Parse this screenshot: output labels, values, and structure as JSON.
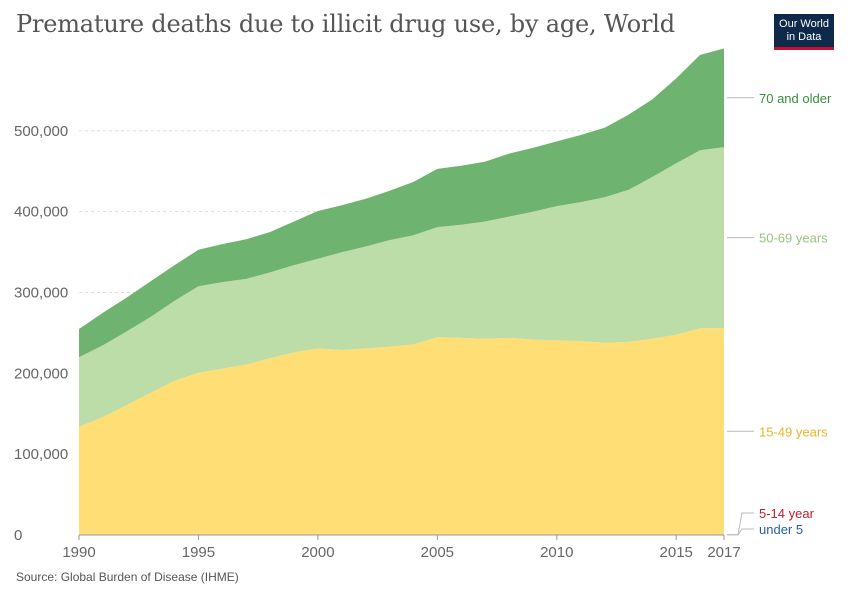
{
  "header": {
    "title": "Premature deaths due to illicit drug use, by age, World",
    "logo_line1": "Our World",
    "logo_line2": "in Data"
  },
  "footer": {
    "source": "Source: Global Burden of Disease (IHME)"
  },
  "colors": {
    "logo_bg": "#0d2a4a",
    "logo_accent": "#c8102e"
  },
  "chart_data": {
    "type": "area",
    "stacked": true,
    "title": "Premature deaths due to illicit drug use, by age, World",
    "x": [
      1990,
      1991,
      1992,
      1993,
      1994,
      1995,
      1996,
      1997,
      1998,
      1999,
      2000,
      2001,
      2002,
      2003,
      2004,
      2005,
      2006,
      2007,
      2008,
      2009,
      2010,
      2011,
      2012,
      2013,
      2014,
      2015,
      2016,
      2017
    ],
    "xticks": [
      1990,
      1995,
      2000,
      2005,
      2010,
      2015,
      2017
    ],
    "yticks": [
      0,
      100000,
      200000,
      300000,
      400000,
      500000
    ],
    "ytick_labels": [
      "0",
      "100,000",
      "200,000",
      "300,000",
      "400,000",
      "500,000"
    ],
    "ylim": [
      0,
      590000
    ],
    "xlim": [
      1990,
      2017
    ],
    "grid": "horizontal dashed",
    "series": [
      {
        "name": "under 5",
        "color": "#2a5caa",
        "values": [
          300,
          300,
          300,
          300,
          300,
          300,
          300,
          300,
          300,
          300,
          300,
          300,
          300,
          300,
          300,
          300,
          300,
          300,
          300,
          300,
          300,
          300,
          300,
          300,
          300,
          300,
          300,
          300
        ]
      },
      {
        "name": "5-14 year",
        "color": "#c0212e",
        "values": [
          500,
          500,
          500,
          500,
          500,
          500,
          500,
          500,
          500,
          500,
          500,
          500,
          500,
          500,
          500,
          500,
          500,
          500,
          500,
          500,
          500,
          500,
          500,
          500,
          500,
          500,
          500,
          500
        ]
      },
      {
        "name": "15-49 years",
        "color": "#ffde76",
        "label_color": "#e6b829",
        "values": [
          133000,
          145000,
          160000,
          175000,
          190000,
          200000,
          205000,
          210000,
          218000,
          225000,
          230000,
          228000,
          230000,
          232000,
          235000,
          244000,
          243000,
          242000,
          243000,
          241000,
          240000,
          239000,
          237000,
          238000,
          242000,
          247000,
          255000,
          255000
        ]
      },
      {
        "name": "50-69 years",
        "color": "#bcdca8",
        "label_color": "#97c47e",
        "values": [
          86000,
          89000,
          91000,
          94000,
          99000,
          107000,
          107000,
          106000,
          106000,
          108000,
          111000,
          121000,
          126000,
          132000,
          135000,
          136000,
          140000,
          145000,
          150000,
          158000,
          166000,
          172000,
          180000,
          188000,
          200000,
          212000,
          220000,
          224000
        ]
      },
      {
        "name": "70 and older",
        "color": "#6eb36f",
        "label_color": "#3a8c3a",
        "values": [
          35000,
          40000,
          42000,
          44000,
          44000,
          45000,
          47000,
          49000,
          50000,
          54000,
          59000,
          58000,
          59000,
          61000,
          66000,
          72000,
          73000,
          74000,
          78000,
          79000,
          80000,
          83000,
          86000,
          93000,
          96000,
          105000,
          118000,
          122000
        ]
      }
    ]
  }
}
